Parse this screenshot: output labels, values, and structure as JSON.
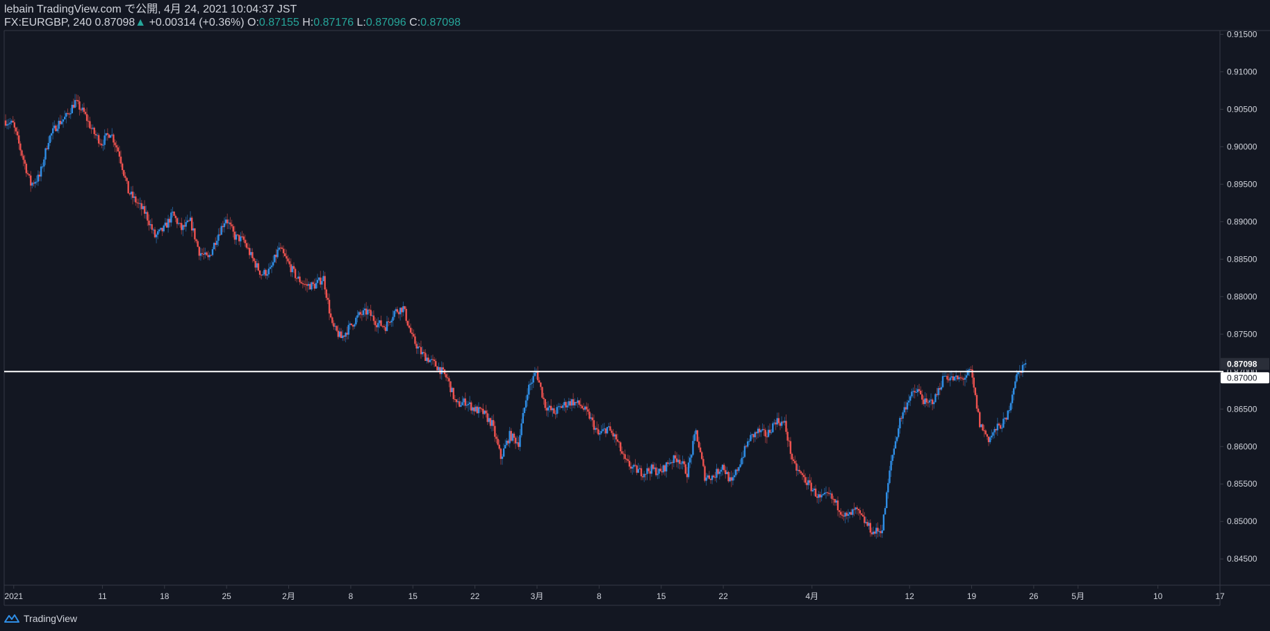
{
  "header": {
    "line1": "lebain TradingView.com で公開, 4月 24, 2021 10:04:37 JST",
    "symbol": "FX:EURGBP, 240",
    "last": "0.87098",
    "change_arrow": "▲",
    "change": "+0.00314 (+0.36%)",
    "o_label": "O:",
    "o_value": "0.87155",
    "h_label": "H:",
    "h_value": "0.87176",
    "l_label": "L:",
    "l_value": "0.87096",
    "c_label": "C:",
    "c_value": "0.87098"
  },
  "footer": {
    "brand": "TradingView",
    "icon": "tradingview-logo-icon"
  },
  "colors": {
    "background": "#131722",
    "up": "#2f8ee6",
    "down": "#ef5350",
    "text": "#d1d4dc",
    "grid_border": "#363a45",
    "hline": "#ffffff"
  },
  "chart_data": {
    "type": "candlestick",
    "symbol": "FX:EURGBP",
    "interval": "240",
    "y_axis": {
      "range": [
        0.8415,
        0.9155
      ],
      "ticks": [
        "0.91500",
        "0.91000",
        "0.90500",
        "0.90000",
        "0.89500",
        "0.89000",
        "0.88500",
        "0.88000",
        "0.87500",
        "0.87000",
        "0.86500",
        "0.86000",
        "0.85500",
        "0.85000",
        "0.84500"
      ],
      "current_price_label": "0.87098",
      "hline_label": "0.87000"
    },
    "x_axis": {
      "range": [
        "2020-12-31",
        "2021-05-17"
      ],
      "ticks": [
        {
          "date": "2021-01-01",
          "label": "2021"
        },
        {
          "date": "2021-01-11",
          "label": "11"
        },
        {
          "date": "2021-01-18",
          "label": "18"
        },
        {
          "date": "2021-01-25",
          "label": "25"
        },
        {
          "date": "2021-02-01",
          "label": "2月"
        },
        {
          "date": "2021-02-08",
          "label": "8"
        },
        {
          "date": "2021-02-15",
          "label": "15"
        },
        {
          "date": "2021-02-22",
          "label": "22"
        },
        {
          "date": "2021-03-01",
          "label": "3月"
        },
        {
          "date": "2021-03-08",
          "label": "8"
        },
        {
          "date": "2021-03-15",
          "label": "15"
        },
        {
          "date": "2021-03-22",
          "label": "22"
        },
        {
          "date": "2021-04-01",
          "label": "4月"
        },
        {
          "date": "2021-04-12",
          "label": "12"
        },
        {
          "date": "2021-04-19",
          "label": "19"
        },
        {
          "date": "2021-04-26",
          "label": "26"
        },
        {
          "date": "2021-05-01",
          "label": "5月"
        },
        {
          "date": "2021-05-10",
          "label": "10"
        },
        {
          "date": "2021-05-17",
          "label": "17"
        }
      ]
    },
    "horizontal_line": 0.87,
    "price_path": [
      {
        "date": "2020-12-31",
        "close": 0.9035
      },
      {
        "date": "2021-01-01",
        "close": 0.903
      },
      {
        "date": "2021-01-02",
        "close": 0.899
      },
      {
        "date": "2021-01-03",
        "close": 0.895
      },
      {
        "date": "2021-01-04",
        "close": 0.896
      },
      {
        "date": "2021-01-05",
        "close": 0.901
      },
      {
        "date": "2021-01-06",
        "close": 0.903
      },
      {
        "date": "2021-01-07",
        "close": 0.904
      },
      {
        "date": "2021-01-08",
        "close": 0.906
      },
      {
        "date": "2021-01-09",
        "close": 0.9045
      },
      {
        "date": "2021-01-10",
        "close": 0.902
      },
      {
        "date": "2021-01-11",
        "close": 0.9005
      },
      {
        "date": "2021-01-12",
        "close": 0.902
      },
      {
        "date": "2021-01-13",
        "close": 0.899
      },
      {
        "date": "2021-01-14",
        "close": 0.894
      },
      {
        "date": "2021-01-15",
        "close": 0.8925
      },
      {
        "date": "2021-01-16",
        "close": 0.891
      },
      {
        "date": "2021-01-17",
        "close": 0.888
      },
      {
        "date": "2021-01-18",
        "close": 0.889
      },
      {
        "date": "2021-01-19",
        "close": 0.891
      },
      {
        "date": "2021-01-20",
        "close": 0.889
      },
      {
        "date": "2021-01-21",
        "close": 0.89
      },
      {
        "date": "2021-01-22",
        "close": 0.886
      },
      {
        "date": "2021-01-23",
        "close": 0.885
      },
      {
        "date": "2021-01-24",
        "close": 0.888
      },
      {
        "date": "2021-01-25",
        "close": 0.8905
      },
      {
        "date": "2021-01-26",
        "close": 0.888
      },
      {
        "date": "2021-01-27",
        "close": 0.8875
      },
      {
        "date": "2021-01-28",
        "close": 0.885
      },
      {
        "date": "2021-01-29",
        "close": 0.883
      },
      {
        "date": "2021-01-30",
        "close": 0.8835
      },
      {
        "date": "2021-01-31",
        "close": 0.8865
      },
      {
        "date": "2021-02-01",
        "close": 0.8845
      },
      {
        "date": "2021-02-02",
        "close": 0.8825
      },
      {
        "date": "2021-02-03",
        "close": 0.8815
      },
      {
        "date": "2021-02-04",
        "close": 0.8815
      },
      {
        "date": "2021-02-05",
        "close": 0.8825
      },
      {
        "date": "2021-02-06",
        "close": 0.876
      },
      {
        "date": "2021-02-07",
        "close": 0.8745
      },
      {
        "date": "2021-02-08",
        "close": 0.876
      },
      {
        "date": "2021-02-09",
        "close": 0.8775
      },
      {
        "date": "2021-02-10",
        "close": 0.878
      },
      {
        "date": "2021-02-11",
        "close": 0.8765
      },
      {
        "date": "2021-02-12",
        "close": 0.876
      },
      {
        "date": "2021-02-13",
        "close": 0.878
      },
      {
        "date": "2021-02-14",
        "close": 0.8785
      },
      {
        "date": "2021-02-15",
        "close": 0.8745
      },
      {
        "date": "2021-02-16",
        "close": 0.8725
      },
      {
        "date": "2021-02-17",
        "close": 0.8715
      },
      {
        "date": "2021-02-18",
        "close": 0.8705
      },
      {
        "date": "2021-02-19",
        "close": 0.869
      },
      {
        "date": "2021-02-20",
        "close": 0.8655
      },
      {
        "date": "2021-02-21",
        "close": 0.866
      },
      {
        "date": "2021-02-22",
        "close": 0.865
      },
      {
        "date": "2021-02-23",
        "close": 0.8645
      },
      {
        "date": "2021-02-24",
        "close": 0.863
      },
      {
        "date": "2021-02-25",
        "close": 0.8585
      },
      {
        "date": "2021-02-26",
        "close": 0.8615
      },
      {
        "date": "2021-02-27",
        "close": 0.8605
      },
      {
        "date": "2021-02-28",
        "close": 0.8675
      },
      {
        "date": "2021-03-01",
        "close": 0.87
      },
      {
        "date": "2021-03-02",
        "close": 0.8655
      },
      {
        "date": "2021-03-03",
        "close": 0.8645
      },
      {
        "date": "2021-03-04",
        "close": 0.8655
      },
      {
        "date": "2021-03-05",
        "close": 0.866
      },
      {
        "date": "2021-03-06",
        "close": 0.8655
      },
      {
        "date": "2021-03-07",
        "close": 0.864
      },
      {
        "date": "2021-03-08",
        "close": 0.8615
      },
      {
        "date": "2021-03-09",
        "close": 0.8625
      },
      {
        "date": "2021-03-10",
        "close": 0.861
      },
      {
        "date": "2021-03-11",
        "close": 0.858
      },
      {
        "date": "2021-03-12",
        "close": 0.857
      },
      {
        "date": "2021-03-13",
        "close": 0.8565
      },
      {
        "date": "2021-03-14",
        "close": 0.857
      },
      {
        "date": "2021-03-15",
        "close": 0.8565
      },
      {
        "date": "2021-03-16",
        "close": 0.858
      },
      {
        "date": "2021-03-17",
        "close": 0.8585
      },
      {
        "date": "2021-03-18",
        "close": 0.8565
      },
      {
        "date": "2021-03-19",
        "close": 0.862
      },
      {
        "date": "2021-03-20",
        "close": 0.856
      },
      {
        "date": "2021-03-21",
        "close": 0.856
      },
      {
        "date": "2021-03-22",
        "close": 0.8575
      },
      {
        "date": "2021-03-23",
        "close": 0.855
      },
      {
        "date": "2021-03-24",
        "close": 0.858
      },
      {
        "date": "2021-03-25",
        "close": 0.861
      },
      {
        "date": "2021-03-26",
        "close": 0.862
      },
      {
        "date": "2021-03-27",
        "close": 0.8615
      },
      {
        "date": "2021-03-28",
        "close": 0.8635
      },
      {
        "date": "2021-03-29",
        "close": 0.863
      },
      {
        "date": "2021-03-30",
        "close": 0.8575
      },
      {
        "date": "2021-03-31",
        "close": 0.856
      },
      {
        "date": "2021-04-01",
        "close": 0.8545
      },
      {
        "date": "2021-04-02",
        "close": 0.853
      },
      {
        "date": "2021-04-03",
        "close": 0.8535
      },
      {
        "date": "2021-04-04",
        "close": 0.852
      },
      {
        "date": "2021-04-05",
        "close": 0.8505
      },
      {
        "date": "2021-04-06",
        "close": 0.8515
      },
      {
        "date": "2021-04-07",
        "close": 0.85
      },
      {
        "date": "2021-04-08",
        "close": 0.8485
      },
      {
        "date": "2021-04-09",
        "close": 0.849
      },
      {
        "date": "2021-04-10",
        "close": 0.858
      },
      {
        "date": "2021-04-11",
        "close": 0.8635
      },
      {
        "date": "2021-04-12",
        "close": 0.8665
      },
      {
        "date": "2021-04-13",
        "close": 0.8675
      },
      {
        "date": "2021-04-14",
        "close": 0.8655
      },
      {
        "date": "2021-04-15",
        "close": 0.8665
      },
      {
        "date": "2021-04-16",
        "close": 0.8695
      },
      {
        "date": "2021-04-17",
        "close": 0.869
      },
      {
        "date": "2021-04-18",
        "close": 0.869
      },
      {
        "date": "2021-04-19",
        "close": 0.87
      },
      {
        "date": "2021-04-20",
        "close": 0.863
      },
      {
        "date": "2021-04-21",
        "close": 0.861
      },
      {
        "date": "2021-04-22",
        "close": 0.8625
      },
      {
        "date": "2021-04-23",
        "close": 0.8635
      },
      {
        "date": "2021-04-24",
        "close": 0.869
      },
      {
        "date": "2021-04-25",
        "close": 0.871
      }
    ]
  }
}
